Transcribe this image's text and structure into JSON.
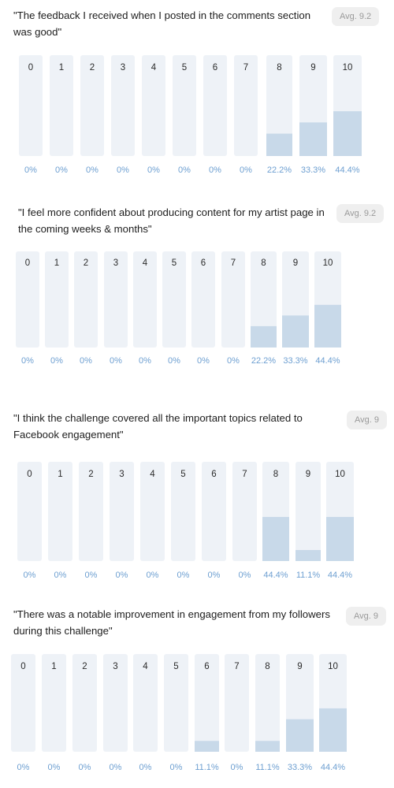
{
  "chart_data": [
    {
      "type": "bar",
      "title": "\"The feedback I received when I posted in the comments section was good\"",
      "avg": "Avg. 9.2",
      "categories": [
        "0",
        "1",
        "2",
        "3",
        "4",
        "5",
        "6",
        "7",
        "8",
        "9",
        "10"
      ],
      "values": [
        0,
        0,
        0,
        0,
        0,
        0,
        0,
        0,
        22.2,
        33.3,
        44.4
      ],
      "value_labels": [
        "0%",
        "0%",
        "0%",
        "0%",
        "0%",
        "0%",
        "0%",
        "0%",
        "22.2%",
        "33.3%",
        "44.4%"
      ],
      "ylim": [
        0,
        100
      ],
      "colors": {
        "track": "#eef2f7",
        "fill": "#c8d9e9",
        "label": "#6d9fd1"
      }
    },
    {
      "type": "bar",
      "title": "\"I feel more confident about producing content for my artist page in the coming weeks & months\"",
      "avg": "Avg. 9.2",
      "categories": [
        "0",
        "1",
        "2",
        "3",
        "4",
        "5",
        "6",
        "7",
        "8",
        "9",
        "10"
      ],
      "values": [
        0,
        0,
        0,
        0,
        0,
        0,
        0,
        0,
        22.2,
        33.3,
        44.4
      ],
      "value_labels": [
        "0%",
        "0%",
        "0%",
        "0%",
        "0%",
        "0%",
        "0%",
        "0%",
        "22.2%",
        "33.3%",
        "44.4%"
      ],
      "ylim": [
        0,
        100
      ],
      "colors": {
        "track": "#eef2f7",
        "fill": "#c8d9e9",
        "label": "#6d9fd1"
      }
    },
    {
      "type": "bar",
      "title": "\"I think the challenge covered all the important topics related to Facebook engagement\"",
      "avg": "Avg. 9",
      "categories": [
        "0",
        "1",
        "2",
        "3",
        "4",
        "5",
        "6",
        "7",
        "8",
        "9",
        "10"
      ],
      "values": [
        0,
        0,
        0,
        0,
        0,
        0,
        0,
        0,
        44.4,
        11.1,
        44.4
      ],
      "value_labels": [
        "0%",
        "0%",
        "0%",
        "0%",
        "0%",
        "0%",
        "0%",
        "0%",
        "44.4%",
        "11.1%",
        "44.4%"
      ],
      "ylim": [
        0,
        100
      ],
      "colors": {
        "track": "#eef2f7",
        "fill": "#c8d9e9",
        "label": "#6d9fd1"
      }
    },
    {
      "type": "bar",
      "title": "\"There was a notable improvement in engagement from my followers during this challenge\"",
      "avg": "Avg. 9",
      "categories": [
        "0",
        "1",
        "2",
        "3",
        "4",
        "5",
        "6",
        "7",
        "8",
        "9",
        "10"
      ],
      "values": [
        0,
        0,
        0,
        0,
        0,
        0,
        11.1,
        0,
        11.1,
        33.3,
        44.4
      ],
      "value_labels": [
        "0%",
        "0%",
        "0%",
        "0%",
        "0%",
        "0%",
        "11.1%",
        "0%",
        "11.1%",
        "33.3%",
        "44.4%"
      ],
      "ylim": [
        0,
        100
      ],
      "colors": {
        "track": "#eef2f7",
        "fill": "#c8d9e9",
        "label": "#6d9fd1"
      }
    }
  ]
}
